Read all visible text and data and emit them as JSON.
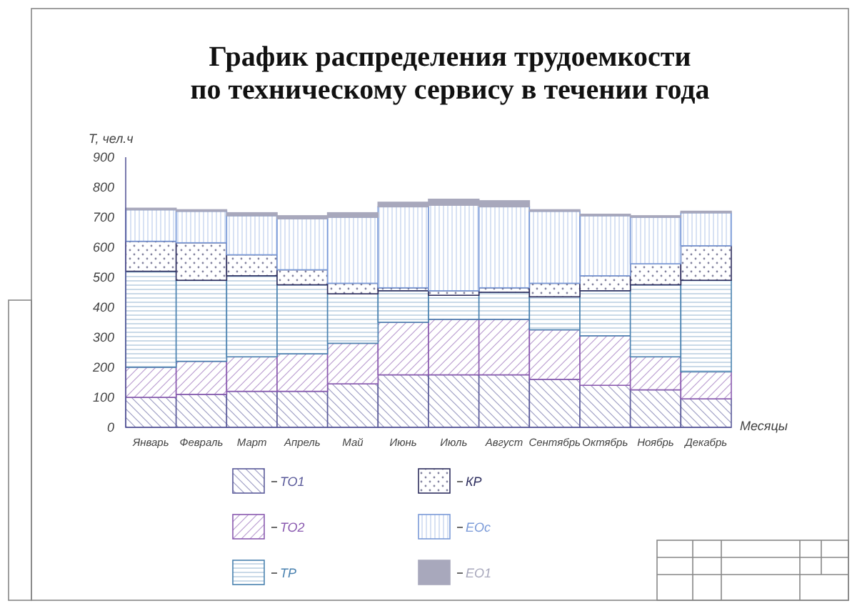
{
  "chart_data": {
    "type": "bar",
    "stacked": true,
    "title": "График распределения трудоемкости\nпо техническому сервису в течении года",
    "ylabel": "Т, чел.ч",
    "xlabel": "Месяцы",
    "categories": [
      "Январь",
      "Февраль",
      "Март",
      "Апрель",
      "Май",
      "Июнь",
      "Июль",
      "Август",
      "Сентябрь",
      "Октябрь",
      "Ноябрь",
      "Декабрь"
    ],
    "ylim": [
      0,
      900
    ],
    "yticks": [
      0,
      100,
      200,
      300,
      400,
      500,
      600,
      700,
      800,
      900
    ],
    "grid": false,
    "legend": "bottom",
    "series": [
      {
        "name": "ТО1",
        "color": "#5a5a9a",
        "values": [
          100,
          110,
          120,
          120,
          145,
          175,
          175,
          175,
          160,
          140,
          125,
          95
        ]
      },
      {
        "name": "ТО2",
        "color": "#8a5ab0",
        "values": [
          100,
          110,
          115,
          125,
          135,
          175,
          185,
          185,
          165,
          165,
          110,
          90
        ]
      },
      {
        "name": "ТР",
        "color": "#4a82b0",
        "values": [
          320,
          270,
          270,
          230,
          165,
          105,
          80,
          90,
          110,
          150,
          240,
          305
        ]
      },
      {
        "name": "КР",
        "color": "#2e2e5e",
        "values": [
          100,
          125,
          70,
          50,
          35,
          10,
          15,
          15,
          45,
          50,
          70,
          115
        ]
      },
      {
        "name": "ЕОс",
        "color": "#7a9ad8",
        "values": [
          105,
          105,
          130,
          170,
          220,
          270,
          285,
          270,
          240,
          200,
          155,
          110
        ]
      },
      {
        "name": "ЕО1",
        "color": "#a8a8bc",
        "values": [
          5,
          5,
          10,
          10,
          15,
          15,
          20,
          20,
          5,
          5,
          5,
          5
        ]
      }
    ]
  }
}
